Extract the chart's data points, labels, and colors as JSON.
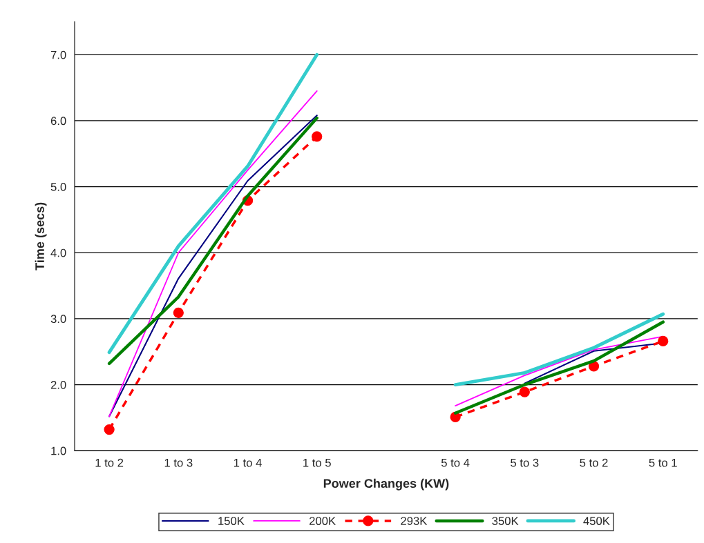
{
  "chart_data": {
    "type": "line",
    "xlabel": "Power Changes (KW)",
    "ylabel": "Time (secs)",
    "categories": [
      "1 to 2",
      "1 to 3",
      "1 to 4",
      "1 to 5",
      null,
      "5 to 4",
      "5 to 3",
      "5 to 2",
      "5 to 1"
    ],
    "series": [
      {
        "name": "150K",
        "color": "#000080",
        "values": [
          1.52,
          3.61,
          5.09,
          6.08,
          null,
          null,
          2.02,
          2.51,
          2.63
        ]
      },
      {
        "name": "200K",
        "color": "#ff00ff",
        "values": [
          1.52,
          4.0,
          5.25,
          6.45,
          null,
          1.68,
          2.14,
          2.53,
          2.73
        ]
      },
      {
        "name": "293K",
        "color": "#ff0000",
        "values": [
          1.32,
          3.09,
          4.79,
          5.76,
          null,
          1.51,
          1.89,
          2.28,
          2.66
        ],
        "marker": "circle",
        "line_style": "dashed"
      },
      {
        "name": "350K",
        "color": "#008000",
        "values": [
          2.32,
          3.33,
          4.86,
          6.04,
          null,
          1.57,
          2.0,
          2.36,
          2.95
        ]
      },
      {
        "name": "450K",
        "color": "#33cccc",
        "values": [
          2.49,
          4.1,
          5.31,
          7.0,
          null,
          2.0,
          2.18,
          2.56,
          3.07
        ]
      }
    ],
    "ylim": [
      1,
      7.5
    ],
    "yticks": [
      {
        "value": 1,
        "label": "1.0"
      },
      {
        "value": 2,
        "label": "2.0"
      },
      {
        "value": 3,
        "label": "3.0"
      },
      {
        "value": 4,
        "label": "4.0"
      },
      {
        "value": 5,
        "label": "5.0"
      },
      {
        "value": 6,
        "label": "6.0"
      },
      {
        "value": 7,
        "label": "7.0"
      }
    ],
    "grid": "y",
    "legend": "bottom",
    "marker": "none",
    "line_style": "solid"
  }
}
